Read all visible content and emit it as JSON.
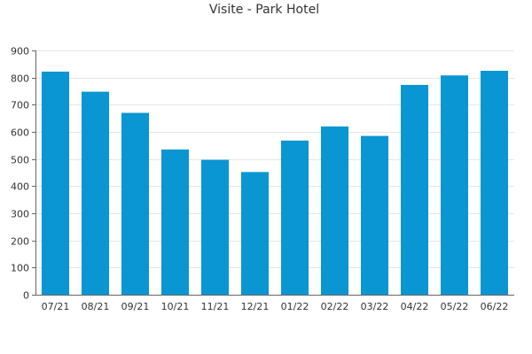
{
  "chart_data": {
    "type": "bar",
    "title": "Visite - Park Hotel",
    "xlabel": "",
    "ylabel": "",
    "categories": [
      "07/21",
      "08/21",
      "09/21",
      "10/21",
      "11/21",
      "12/21",
      "01/22",
      "02/22",
      "03/22",
      "04/22",
      "05/22",
      "06/22"
    ],
    "values": [
      822,
      748,
      670,
      535,
      497,
      452,
      568,
      620,
      585,
      773,
      808,
      825
    ],
    "ylim": [
      0,
      900
    ],
    "yticks": [
      0,
      100,
      200,
      300,
      400,
      500,
      600,
      700,
      800,
      900
    ],
    "grid": true,
    "legend": "none",
    "colors": {
      "bar": "#0a96d2",
      "grid": "#e6e6e6",
      "axis": "#666666",
      "text": "#333333"
    }
  }
}
